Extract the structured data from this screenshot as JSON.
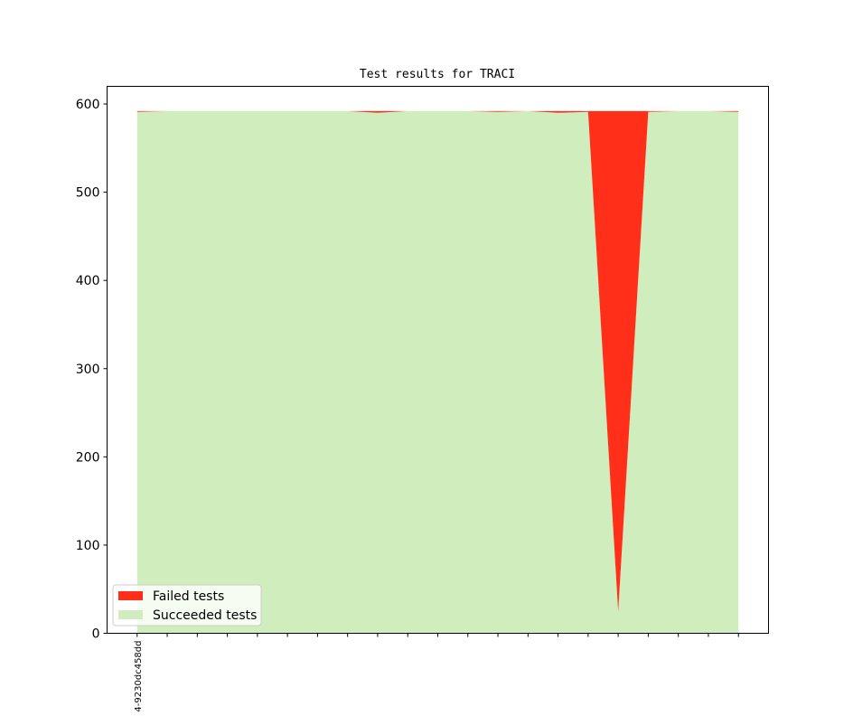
{
  "chart_data": {
    "type": "area",
    "stacked": true,
    "title": "Test results for TRACI",
    "xlabel": "",
    "ylabel": "",
    "x": [
      0,
      1,
      2,
      3,
      4,
      5,
      6,
      7,
      8,
      9,
      10,
      11,
      12,
      13,
      14,
      15,
      16,
      17,
      18,
      19,
      20
    ],
    "x_tick_labels": [
      "4-9230dc458dd",
      "",
      "",
      "",
      "",
      "",
      "",
      "",
      "",
      "",
      "",
      "",
      "",
      "",
      "",
      "",
      "",
      "",
      "",
      "",
      ""
    ],
    "xlim": [
      -1,
      21
    ],
    "ylim": [
      0,
      620
    ],
    "y_ticks": [
      0,
      100,
      200,
      300,
      400,
      500,
      600
    ],
    "grid": false,
    "legend_position": "lower-left",
    "series": [
      {
        "name": "Succeeded tests",
        "color": "#d0edbe",
        "values": [
          591,
          592,
          592,
          592,
          592,
          592,
          592,
          592,
          590,
          592,
          592,
          592,
          591,
          592,
          590,
          591,
          25,
          591,
          592,
          592,
          591
        ]
      },
      {
        "name": "Failed tests",
        "color": "#ff2f1a",
        "values": [
          1,
          0,
          0,
          0,
          0,
          0,
          0,
          0,
          2,
          0,
          0,
          0,
          1,
          0,
          2,
          1,
          567,
          1,
          0,
          0,
          1
        ]
      }
    ]
  }
}
